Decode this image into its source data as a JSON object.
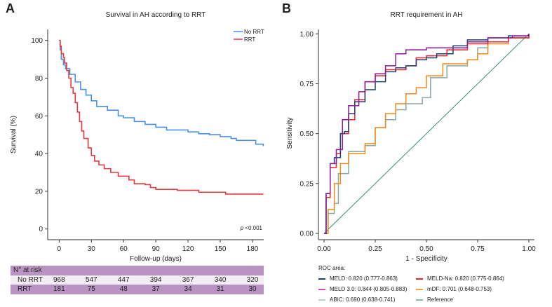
{
  "chart_data": [
    {
      "panel": "A",
      "type": "line",
      "title": "Survival in AH according to RRT",
      "xlabel": "Follow-up (days)",
      "ylabel": "Survival (%)",
      "xlim": [
        -8,
        190
      ],
      "ylim": [
        -8,
        106
      ],
      "xticks": [
        0,
        30,
        60,
        90,
        120,
        150,
        180
      ],
      "yticks": [
        0,
        20,
        40,
        60,
        80,
        100
      ],
      "legend_position": "top-right",
      "annotation_p": "p",
      "annotation": "<0.001",
      "series": [
        {
          "name": "No RRT",
          "color": "#4a8fe7",
          "x": [
            0,
            1,
            2,
            4,
            6,
            10,
            15,
            20,
            25,
            30,
            35,
            45,
            55,
            60,
            70,
            80,
            90,
            100,
            120,
            130,
            140,
            150,
            160,
            165,
            180,
            183,
            190
          ],
          "y": [
            100,
            95,
            90,
            87,
            85,
            82,
            78,
            74,
            71,
            68,
            65,
            63,
            60,
            59,
            57,
            55.5,
            54,
            52.5,
            51.5,
            50.5,
            50,
            49,
            48,
            47,
            47,
            45,
            44
          ]
        },
        {
          "name": "RRT",
          "color": "#e8383d",
          "x": [
            0,
            1,
            2,
            4,
            5,
            7,
            9,
            11,
            13,
            15,
            17,
            19,
            21,
            23,
            27,
            30,
            33,
            37,
            42,
            48,
            55,
            65,
            70,
            80,
            85,
            90,
            110,
            130,
            155,
            190
          ],
          "y": [
            100,
            97,
            93,
            91,
            88,
            84,
            80,
            75,
            72,
            67,
            62,
            57,
            52,
            48,
            43,
            39,
            36,
            34,
            32,
            30,
            28,
            26,
            24,
            23.5,
            22,
            21,
            20.5,
            19.5,
            18.5,
            18.5
          ]
        }
      ],
      "risk_table": {
        "header": "N° at risk",
        "columns": [
          0,
          30,
          60,
          90,
          120,
          150,
          180
        ],
        "rows": [
          {
            "label": "No RRT",
            "values": [
              "968",
              "547",
              "447",
              "394",
              "367",
              "340",
              "320"
            ]
          },
          {
            "label": "RRT",
            "values": [
              "181",
              "75",
              "48",
              "37",
              "34",
              "31",
              "30"
            ]
          }
        ]
      }
    },
    {
      "panel": "B",
      "type": "line",
      "title": "RRT requirement in AH",
      "xlabel": "1 - Specificity",
      "ylabel": "Sensitivity",
      "xlim": [
        0,
        1
      ],
      "ylim": [
        0,
        1
      ],
      "xticks": [
        "0.00",
        "0.25",
        "0.50",
        "0.75",
        "1.00"
      ],
      "yticks": [
        "0.00",
        "0.25",
        "0.50",
        "0.75",
        "1.00"
      ],
      "legend_title": "ROC area:",
      "series": [
        {
          "name": "MELD: 0.820 (0.777-0.863)",
          "color": "#1f3f6e",
          "x": [
            0,
            0.01,
            0.03,
            0.05,
            0.08,
            0.1,
            0.12,
            0.15,
            0.2,
            0.25,
            0.3,
            0.35,
            0.4,
            0.45,
            0.5,
            0.55,
            0.63,
            0.7,
            0.8,
            0.9,
            1
          ],
          "y": [
            0,
            0.2,
            0.35,
            0.38,
            0.5,
            0.51,
            0.6,
            0.66,
            0.72,
            0.76,
            0.81,
            0.83,
            0.84,
            0.87,
            0.88,
            0.9,
            0.94,
            0.97,
            0.98,
            0.99,
            1
          ]
        },
        {
          "name": "MELD-Na: 0.820 (0.775-0.864)",
          "color": "#f0222a",
          "x": [
            0,
            0.01,
            0.03,
            0.06,
            0.08,
            0.12,
            0.15,
            0.2,
            0.25,
            0.3,
            0.4,
            0.45,
            0.5,
            0.6,
            0.7,
            0.8,
            0.9,
            1
          ],
          "y": [
            0,
            0.18,
            0.33,
            0.4,
            0.5,
            0.57,
            0.67,
            0.76,
            0.79,
            0.82,
            0.84,
            0.88,
            0.89,
            0.92,
            0.95,
            0.96,
            0.98,
            1
          ]
        },
        {
          "name": "MELD 3.0: 0.844 (0.805-0.883)",
          "color": "#8e1b9c",
          "x": [
            0,
            0.01,
            0.03,
            0.06,
            0.09,
            0.12,
            0.17,
            0.2,
            0.25,
            0.3,
            0.35,
            0.4,
            0.5,
            0.6,
            0.7,
            0.8,
            0.92,
            1
          ],
          "y": [
            0,
            0.2,
            0.35,
            0.42,
            0.57,
            0.64,
            0.71,
            0.76,
            0.8,
            0.84,
            0.9,
            0.92,
            0.93,
            0.93,
            0.96,
            0.98,
            0.99,
            1
          ]
        },
        {
          "name": "mDF: 0.701 (0.648-0.753)",
          "color": "#f08a1c",
          "x": [
            0,
            0.02,
            0.05,
            0.08,
            0.12,
            0.2,
            0.25,
            0.3,
            0.35,
            0.4,
            0.45,
            0.5,
            0.58,
            0.7,
            0.75,
            0.8,
            0.9,
            1
          ],
          "y": [
            0,
            0.12,
            0.25,
            0.35,
            0.4,
            0.45,
            0.53,
            0.6,
            0.65,
            0.7,
            0.73,
            0.79,
            0.85,
            0.87,
            0.9,
            0.95,
            0.98,
            1
          ]
        },
        {
          "name": "ABIC: 0.690 (0.638-0.741)",
          "color": "#8aa8a0",
          "x": [
            0,
            0.02,
            0.05,
            0.07,
            0.12,
            0.2,
            0.25,
            0.3,
            0.35,
            0.4,
            0.48,
            0.52,
            0.6,
            0.7,
            0.75,
            0.8,
            0.9,
            1
          ],
          "y": [
            0,
            0.1,
            0.15,
            0.3,
            0.41,
            0.44,
            0.53,
            0.57,
            0.62,
            0.65,
            0.68,
            0.78,
            0.84,
            0.87,
            0.93,
            0.96,
            0.98,
            1
          ]
        },
        {
          "name": "Reference",
          "color": "#3a8a80",
          "x": [
            0,
            1
          ],
          "y": [
            0,
            1
          ]
        }
      ]
    }
  ]
}
